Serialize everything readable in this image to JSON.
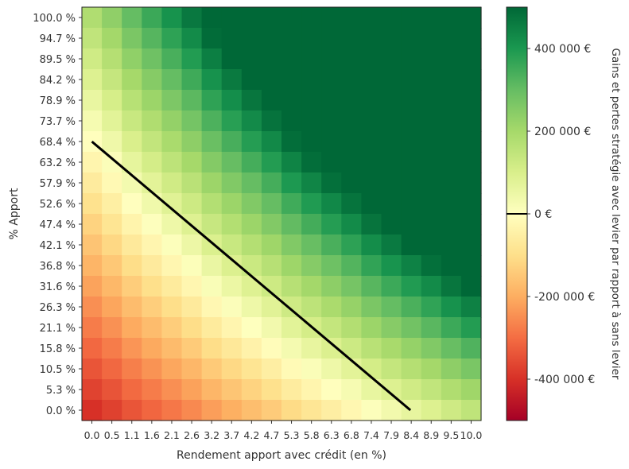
{
  "chart_data": {
    "type": "heatmap",
    "title": "",
    "xlabel": "Rendement apport avec crédit (en %)",
    "ylabel": "% Apport",
    "colorbar_label": "Gains et pertes stratégie avec levier par rapport à sans levier",
    "x_ticks": [
      "0.0",
      "0.5",
      "1.1",
      "1.6",
      "2.1",
      "2.6",
      "3.2",
      "3.7",
      "4.2",
      "4.7",
      "5.3",
      "5.8",
      "6.3",
      "6.8",
      "7.4",
      "7.9",
      "8.4",
      "8.9",
      "9.5",
      "10.0"
    ],
    "y_ticks": [
      "100.0 %",
      "94.7 %",
      "89.5 %",
      "84.2 %",
      "78.9 %",
      "73.7 %",
      "68.4 %",
      "63.2 %",
      "57.9 %",
      "52.6 %",
      "47.4 %",
      "42.1 %",
      "36.8 %",
      "31.6 %",
      "26.3 %",
      "21.1 %",
      "15.8 %",
      "10.5 %",
      "5.3 %",
      "0.0 %"
    ],
    "x_values": [
      0.0,
      0.5,
      1.1,
      1.6,
      2.1,
      2.6,
      3.2,
      3.7,
      4.2,
      4.7,
      5.3,
      5.8,
      6.3,
      6.8,
      7.4,
      7.9,
      8.4,
      8.9,
      9.5,
      10.0
    ],
    "y_values": [
      100.0,
      94.7,
      89.5,
      84.2,
      78.9,
      73.7,
      68.4,
      63.2,
      57.9,
      52.6,
      47.4,
      42.1,
      36.8,
      31.6,
      26.3,
      21.1,
      15.8,
      10.5,
      5.3,
      0.0
    ],
    "value_model": {
      "description_units": "EUR",
      "z_min": -500000,
      "z_max": 500000,
      "approx_grid_formula_params": {
        "x_per_pct": 55000,
        "y_per_pct": 5800,
        "offset": -400000
      }
    },
    "colorbar": {
      "colormap": "RdYlGn",
      "range": [
        -500000,
        500000
      ],
      "ticks": [
        400000,
        200000,
        0,
        -200000,
        -400000
      ],
      "tick_labels": [
        "400 000 €",
        "200 000 €",
        "0 €",
        "-200 000 €",
        "-400 000 €"
      ],
      "zero_line": true
    },
    "breakeven_line": {
      "points": [
        {
          "x": 0.0,
          "y": 68.4
        },
        {
          "x": 8.4,
          "y": 0.0
        }
      ],
      "color": "#000000"
    },
    "grid": false
  }
}
